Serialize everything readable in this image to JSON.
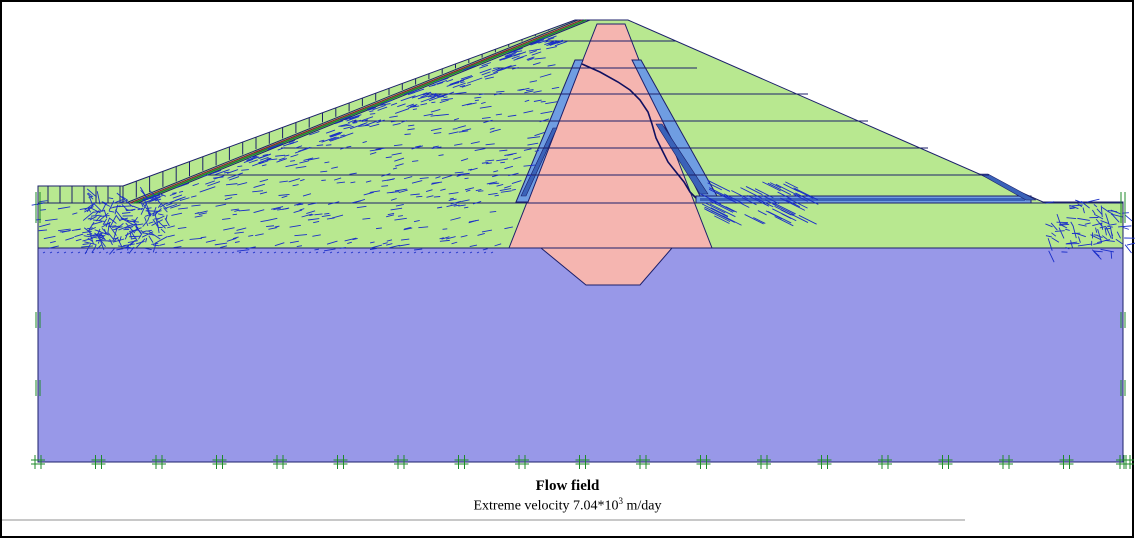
{
  "caption": {
    "title": "Flow field",
    "velocity_prefix": "Extreme velocity ",
    "velocity_mantissa": "7.04*10",
    "velocity_exponent": "3",
    "velocity_unit": " m/day"
  },
  "colors": {
    "background": "#ffffff",
    "frame_border": "#000000",
    "foundation": "#9898e8",
    "embankment": "#b8e890",
    "core": "#f5b5b0",
    "filter_light": "#6f9de2",
    "filter_dark": "#3a62b8",
    "outline": "#1b1f6a",
    "vectors": "#1a2ec8",
    "fixities": "#1e8a2a",
    "phreatic_line": "#101060",
    "slope_protection": "#8b1a2b"
  }
}
